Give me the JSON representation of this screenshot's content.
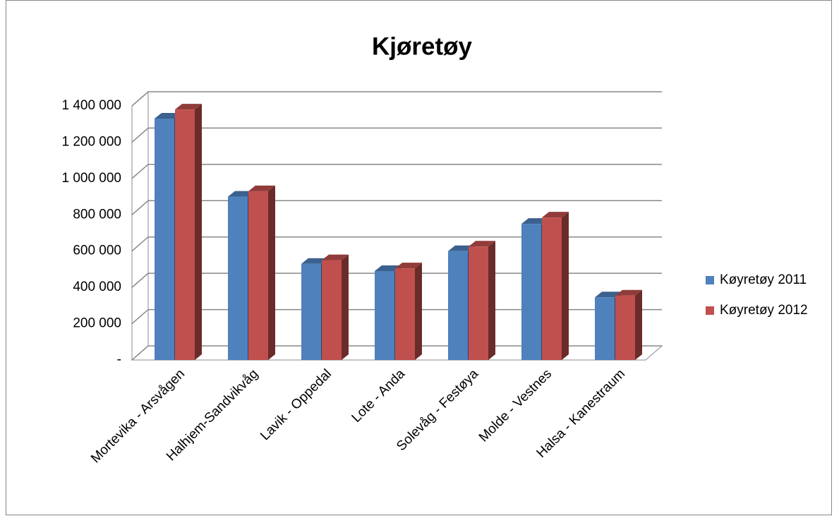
{
  "chart_data": {
    "type": "bar3d",
    "title": "Kjøretøy",
    "categories": [
      "Mortevika - Arsvågen",
      "Halhjem-Sandvikvåg",
      "Lavik - Oppedal",
      "Lote - Anda",
      "Solevåg - Festøya",
      "Molde - Vestnes",
      "Halsa - Kanestraum"
    ],
    "series": [
      {
        "name": "Køyretøy 2011",
        "color": "#4f81bd",
        "values": [
          1330000,
          900000,
          530000,
          490000,
          600000,
          750000,
          345000
        ]
      },
      {
        "name": "Køyretøy 2012",
        "color": "#c0504d",
        "values": [
          1380000,
          930000,
          550000,
          505000,
          625000,
          785000,
          355000
        ]
      }
    ],
    "ylim": [
      0,
      1400000
    ],
    "yticks": [
      {
        "value": 0,
        "label": "-"
      },
      {
        "value": 200000,
        "label": "200 000"
      },
      {
        "value": 400000,
        "label": "400 000"
      },
      {
        "value": 600000,
        "label": "600 000"
      },
      {
        "value": 800000,
        "label": "800 000"
      },
      {
        "value": 1000000,
        "label": "1 000 000"
      },
      {
        "value": 1200000,
        "label": "1 200 000"
      },
      {
        "value": 1400000,
        "label": "1 400 000"
      }
    ],
    "grid": true,
    "legend": "right"
  }
}
